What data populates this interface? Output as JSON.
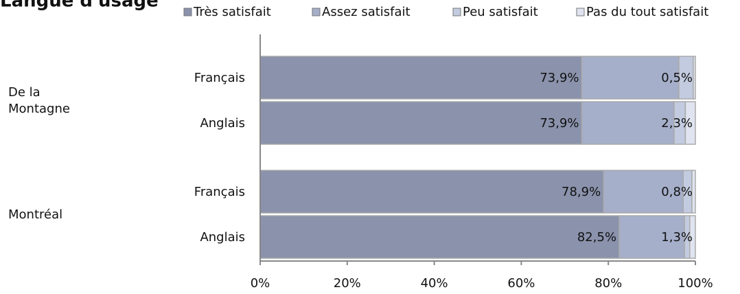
{
  "chart_data": {
    "type": "stacked_bar_horizontal",
    "title": "Langue d'usage",
    "groups": [
      {
        "label": [
          "De la",
          "Montagne"
        ],
        "rows": [
          0,
          1
        ]
      },
      {
        "label": [
          "Montréal"
        ],
        "rows": [
          2,
          3
        ]
      }
    ],
    "categories": [
      "Français",
      "Anglais",
      "Français",
      "Anglais"
    ],
    "series": [
      {
        "name": "Très satisfait",
        "color": "#8a92ac",
        "values": [
          73.9,
          73.9,
          78.9,
          82.5
        ],
        "value_labels": [
          "73,9%",
          "73,9%",
          "78,9%",
          "82,5%"
        ]
      },
      {
        "name": "Assez satisfait",
        "color": "#a5afca",
        "values": [
          22.3,
          21.2,
          18.3,
          15.0
        ]
      },
      {
        "name": "Peu satisfait",
        "color": "#c3cbe0",
        "values": [
          3.3,
          2.6,
          2.0,
          1.2
        ]
      },
      {
        "name": "Pas du tout satisfait",
        "color": "#dfe4f0",
        "values": [
          0.5,
          2.3,
          0.8,
          1.3
        ],
        "value_labels": [
          "0,5%",
          "2,3%",
          "0,8%",
          "1,3%"
        ]
      }
    ],
    "xlim": [
      0,
      100
    ],
    "xticks": [
      {
        "value": 0,
        "label": "0%"
      },
      {
        "value": 20,
        "label": "20%"
      },
      {
        "value": 40,
        "label": "40%"
      },
      {
        "value": 60,
        "label": "60%"
      },
      {
        "value": 80,
        "label": "80%"
      },
      {
        "value": 100,
        "label": "100%"
      }
    ],
    "legend": "top"
  }
}
